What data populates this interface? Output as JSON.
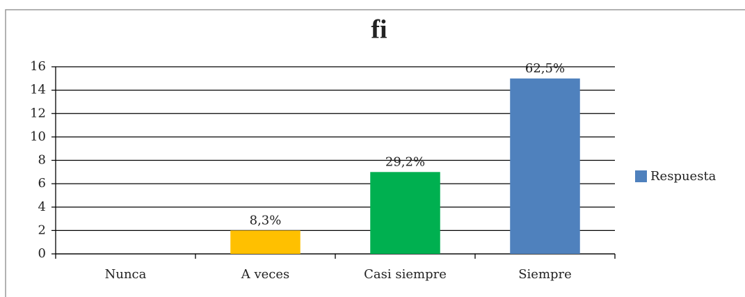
{
  "chart_data": {
    "type": "bar",
    "title": "fi",
    "categories": [
      "Nunca",
      "A veces",
      "Casi siempre",
      "Siempre"
    ],
    "series": [
      {
        "name": "Respuesta",
        "color": "#4f81bd",
        "values": [
          0,
          2,
          7,
          15
        ]
      }
    ],
    "bar_colors": [
      "#4f81bd",
      "#ffc000",
      "#00b050",
      "#4f81bd"
    ],
    "annotations": [
      null,
      "8,3%",
      "29,2%",
      "62,5%"
    ],
    "ylim": [
      0,
      16
    ],
    "yticks": [
      0,
      2,
      4,
      6,
      8,
      10,
      12,
      14,
      16
    ],
    "grid": true,
    "legend": "right"
  }
}
